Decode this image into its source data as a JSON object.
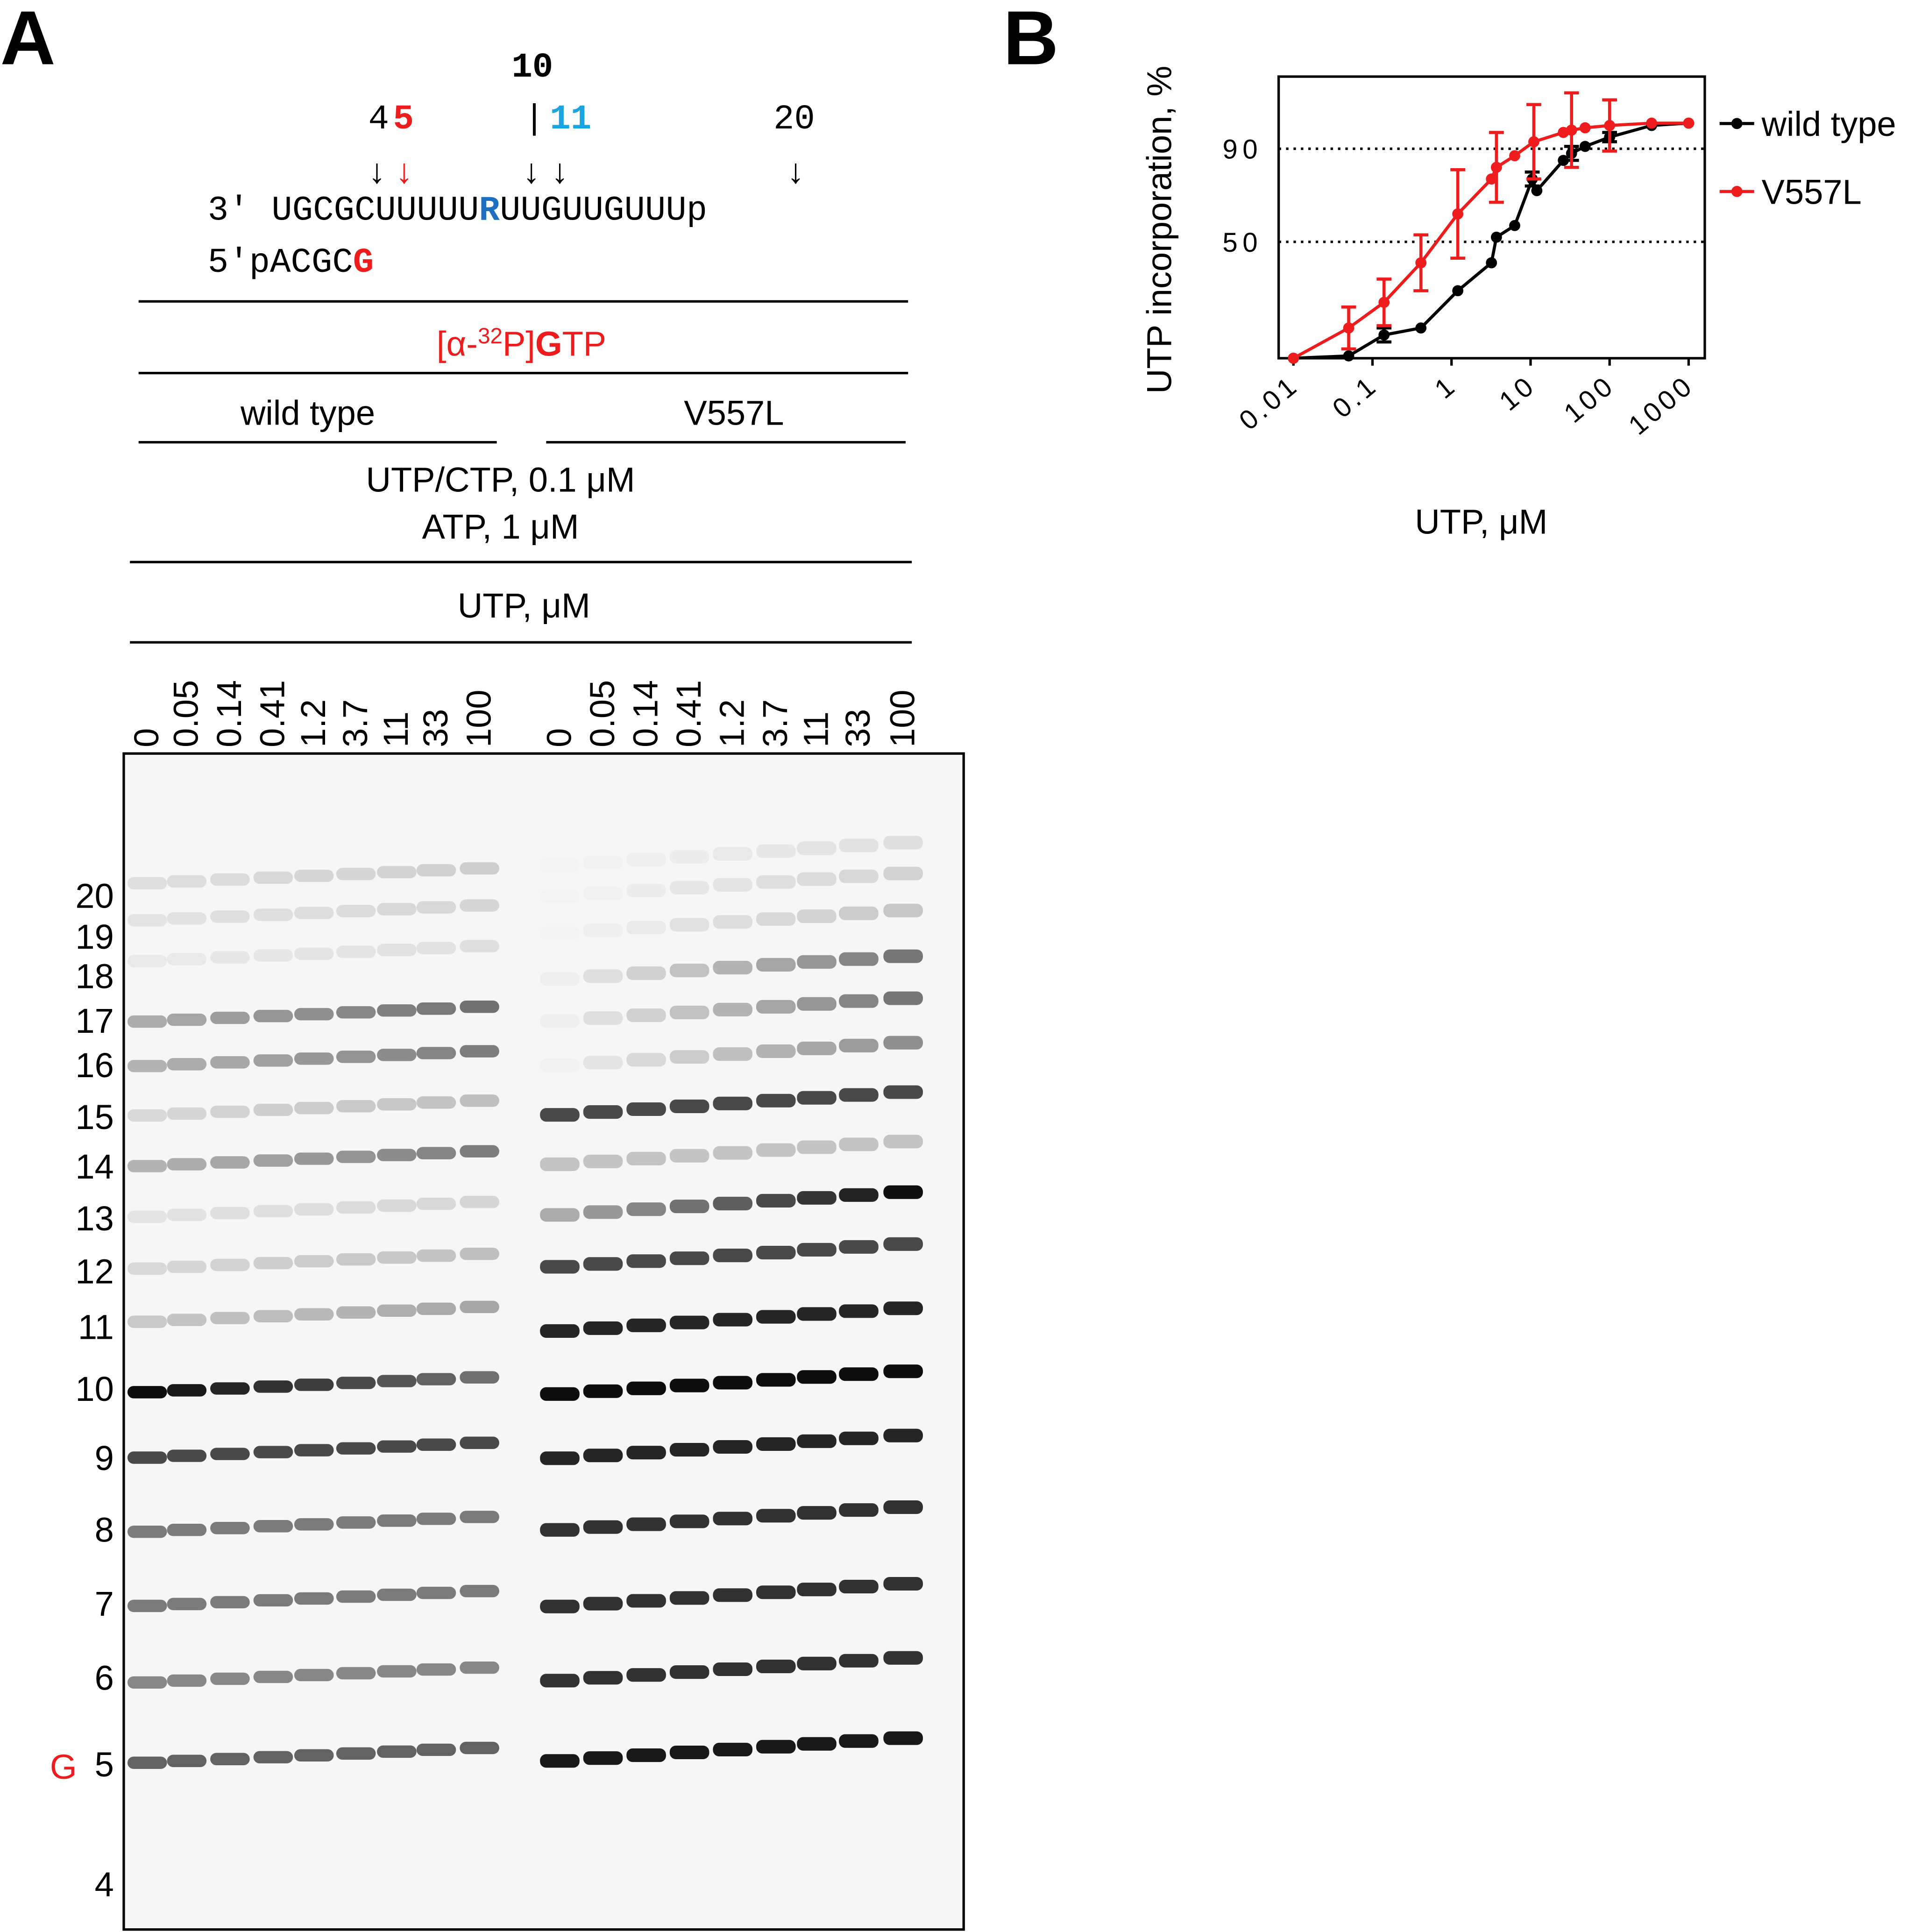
{
  "panel_a": {
    "label": "A",
    "sequence": {
      "pos_10": "10",
      "pos_4": "4",
      "pos_5": "5",
      "pos_bar": "|",
      "pos_11": "11",
      "pos_20": "20",
      "arrow": "↓",
      "template_end": "3′",
      "template_a": "UGCGCUUUUU",
      "template_r": "R",
      "template_b": "UUGUUGUUUp",
      "primer_a": "5′pACGC",
      "primer_g": "G"
    },
    "substrate": {
      "a": "[α-",
      "sup": "32",
      "b": "P]",
      "g": "G",
      "c": "TP"
    },
    "groups": [
      "wild type",
      "V557L"
    ],
    "conditions": [
      "UTP/CTP, 0.1 μM",
      "ATP, 1 μM"
    ],
    "titration": "UTP, μM",
    "lanes": [
      [
        "0",
        "0.05",
        "0.14",
        "0.41",
        "1.2",
        "3.7",
        "11",
        "33",
        "100"
      ],
      [
        "0",
        "0.05",
        "0.14",
        "0.41",
        "1.2",
        "3.7",
        "11",
        "33",
        "100"
      ]
    ],
    "markers": [
      "20",
      "19",
      "18",
      "17",
      "16",
      "15",
      "14",
      "13",
      "12",
      "11",
      "10",
      "9",
      "8",
      "7",
      "6",
      "5",
      "4"
    ],
    "marker_g": "G"
  },
  "panel_b": {
    "label": "B",
    "chart_data": {
      "type": "line",
      "x_label": "UTP, μM",
      "y_label": "UTP incorporation, %",
      "xscale": "log",
      "xlim": [
        0.0065,
        1600
      ],
      "xticks": [
        0.01,
        0.1,
        1,
        10,
        100,
        1000
      ],
      "ylim": [
        0,
        121
      ],
      "yticks": [
        50,
        90
      ],
      "grid": "dotted",
      "legend": "right",
      "series": [
        {
          "name": "wild type",
          "color": "#000000",
          "x": [
            0.01,
            0.05,
            0.14,
            0.41,
            1.2,
            3.2,
            3.7,
            6.3,
            10.5,
            12,
            26,
            33,
            49,
            100,
            340,
            1000
          ],
          "values": [
            0,
            1,
            10,
            13,
            29,
            41,
            52,
            57,
            77,
            72,
            85,
            88,
            91,
            95,
            100,
            101
          ],
          "errors": [
            null,
            null,
            3,
            null,
            null,
            null,
            null,
            null,
            3,
            null,
            null,
            3,
            null,
            2,
            null,
            null
          ]
        },
        {
          "name": "V557L",
          "color": "#ee1c1c",
          "x": [
            0.01,
            0.05,
            0.14,
            0.41,
            1.2,
            3.2,
            3.7,
            6.3,
            11,
            26,
            33,
            49,
            100,
            340,
            1000
          ],
          "values": [
            0,
            13,
            24,
            41,
            62,
            77,
            82,
            87,
            93,
            97,
            98,
            99,
            100,
            101,
            101
          ],
          "errors": [
            null,
            9,
            10,
            12,
            19,
            null,
            15,
            null,
            16,
            null,
            16,
            null,
            11,
            null,
            null
          ]
        }
      ]
    }
  }
}
